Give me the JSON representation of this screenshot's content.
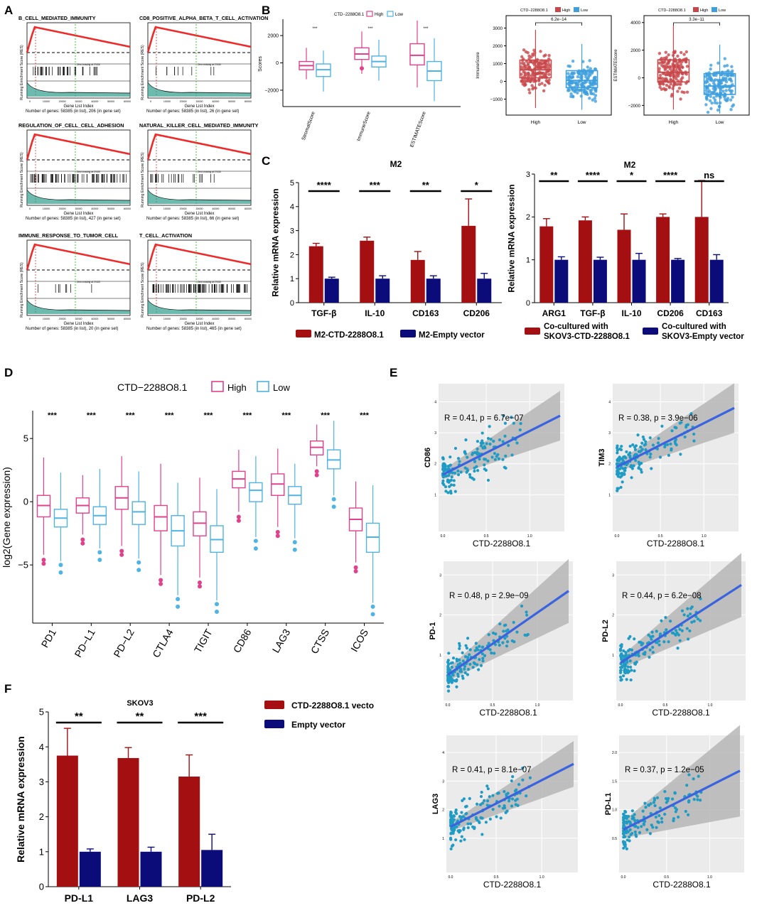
{
  "colors": {
    "gsea_red": "#ee2b2b",
    "gsea_green": "#2fcf2f",
    "gsea_teal": "#2f9c8c",
    "high_pink": "#e0418c",
    "low_blue": "#4fb3e3",
    "box_red": "#c8474a",
    "box_blue": "#3f9fdd",
    "bar_red": "#a40f12",
    "bar_navy": "#0b0c7a",
    "scatter_pt": "#1f9bc4",
    "fit_line": "#3a63e0",
    "panel_bg": "#ebebeb"
  },
  "panel_labels": [
    "A",
    "B",
    "C",
    "D",
    "E",
    "F"
  ],
  "panel_A": {
    "xlabel": "Gene List Index",
    "ylabel": "Running Enrichment Score (RES)",
    "zero_cross": "Zero crossing at 27435",
    "plots": [
      {
        "title": "B_CELL_MEDIATED_IMMUNITY",
        "genes": "Number of genes: 58385 (in list), 206 (in gene set)"
      },
      {
        "title": "CD8_POSITIVE_ALPHA_BETA_T_CELL_ACTIVATION",
        "genes": "Number of genes: 58385 (in list), 26 (in gene set)"
      },
      {
        "title": "REGULATION_OF_CELL_CELL_ADHESION",
        "genes": "Number of genes: 58385 (in list), 427 (in gene set)"
      },
      {
        "title": "NATURAL_KILLER_CELL_MEDIATED_IMMUNITY",
        "genes": "Number of genes: 58385 (in list), 66 (in gene set)"
      },
      {
        "title": "IMMUNE_RESPONSE_TO_TUMOR_CELL",
        "genes": "Number of genes: 58385 (in list), 20 (in gene set)"
      },
      {
        "title": "T_CELL_ACTIVATION",
        "genes": "Number of genes: 58385 (in list), 465 (in gene set)"
      }
    ],
    "xticks": [
      "0",
      "10000",
      "20000",
      "30000",
      "40000",
      "50000",
      "60000"
    ]
  },
  "chart_data": [
    {
      "id": "B1",
      "type": "box",
      "legend_title": "CTD−2288O8.1",
      "legend": [
        "High",
        "Low"
      ],
      "ylabel": "Scores",
      "ylim": [
        -3200,
        3200
      ],
      "yticks": [
        2000,
        0,
        -2000
      ],
      "categories": [
        "StromalScore",
        "ImmuneScore",
        "ESTIMATEScore"
      ],
      "significance": [
        "***",
        "***",
        "***"
      ],
      "series": [
        {
          "name": "High",
          "boxes": [
            {
              "q1": -500,
              "med": -200,
              "q3": 100,
              "lo": -1200,
              "hi": 1100
            },
            {
              "q1": 250,
              "med": 650,
              "q3": 1100,
              "lo": -800,
              "hi": 2300
            },
            {
              "q1": -150,
              "med": 550,
              "q3": 1400,
              "lo": -1800,
              "hi": 3100
            }
          ]
        },
        {
          "name": "Low",
          "boxes": [
            {
              "q1": -1000,
              "med": -500,
              "q3": -80,
              "lo": -2100,
              "hi": 900
            },
            {
              "q1": -300,
              "med": 100,
              "q3": 500,
              "lo": -1300,
              "hi": 1700
            },
            {
              "q1": -1300,
              "med": -600,
              "q3": 100,
              "lo": -2800,
              "hi": 1800
            }
          ]
        }
      ]
    },
    {
      "id": "B2",
      "type": "box_jitter",
      "legend_title": "CTD−2288O8.1",
      "legend": [
        "High",
        "Low"
      ],
      "ylabel": "ImmuneScore",
      "ylim": [
        -1900,
        3700
      ],
      "yticks": [
        3000,
        2000,
        1000,
        0,
        -1000
      ],
      "categories": [
        "High",
        "Low"
      ],
      "pvalue": "6.2e−14",
      "boxes": [
        {
          "q1": 200,
          "med": 650,
          "q3": 1200,
          "lo": -1500,
          "hi": 2900
        },
        {
          "q1": -350,
          "med": 50,
          "q3": 600,
          "lo": -1600,
          "hi": 2100
        }
      ]
    },
    {
      "id": "B3",
      "type": "box_jitter",
      "legend_title": "CTD−2288O8.1",
      "legend": [
        "High",
        "Low"
      ],
      "ylabel": "ESTIMATEScore",
      "ylim": [
        -2700,
        4500
      ],
      "yticks": [
        4000,
        2000,
        0,
        -2000
      ],
      "categories": [
        "High",
        "Low"
      ],
      "pvalue": "3.3e−11",
      "boxes": [
        {
          "q1": -300,
          "med": 400,
          "q3": 1300,
          "lo": -2300,
          "hi": 3800
        },
        {
          "q1": -1200,
          "med": -600,
          "q3": 300,
          "lo": -2600,
          "hi": 2400
        }
      ]
    },
    {
      "id": "C1",
      "type": "bar",
      "title": "M2",
      "ylabel": "Relative mRNA expression",
      "ylim": [
        0,
        5
      ],
      "yticks": [
        0,
        1,
        2,
        3,
        4,
        5
      ],
      "categories": [
        "TGF-β",
        "IL-10",
        "CD163",
        "CD206"
      ],
      "significance": [
        "****",
        "***",
        "**",
        "*"
      ],
      "series": [
        {
          "name": "M2-CTD-2288O8.1",
          "values": [
            2.35,
            2.58,
            1.78,
            3.2
          ],
          "errors": [
            0.12,
            0.15,
            0.35,
            1.12
          ]
        },
        {
          "name": "M2-Empty vector",
          "values": [
            1.0,
            1.0,
            1.0,
            1.0
          ],
          "errors": [
            0.06,
            0.12,
            0.12,
            0.22
          ]
        }
      ]
    },
    {
      "id": "C2",
      "type": "bar",
      "title": "M2",
      "ylabel": "Relative mRNA expression",
      "ylim": [
        0,
        3
      ],
      "yticks": [
        0,
        1,
        2,
        3
      ],
      "categories": [
        "ARG1",
        "TGF-β",
        "IL-10",
        "CD206",
        "CD163"
      ],
      "significance": [
        "**",
        "****",
        "*",
        "****",
        "ns"
      ],
      "series": [
        {
          "name": "Co-cultured with SKOV3-CTD-2288O8.1",
          "values": [
            1.78,
            1.92,
            1.7,
            2.0,
            2.0
          ],
          "errors": [
            0.18,
            0.08,
            0.37,
            0.07,
            0.85
          ]
        },
        {
          "name": "Co-cultured with SKOV3-Empty vector",
          "values": [
            1.0,
            1.0,
            1.0,
            1.0,
            1.0
          ],
          "errors": [
            0.07,
            0.06,
            0.15,
            0.03,
            0.12
          ]
        }
      ],
      "legend_lines": [
        [
          "Co-cultured with",
          "SKOV3-CTD-2288O8.1"
        ],
        [
          "Co-cultured with",
          "SKOV3-Empty vector"
        ]
      ]
    },
    {
      "id": "D",
      "type": "box",
      "legend_title": "CTD−2288O8.1",
      "legend": [
        "High",
        "Low"
      ],
      "ylabel": "log2(Gene expression)",
      "ylim": [
        -9.6,
        7.2
      ],
      "yticks": [
        5,
        0,
        -5
      ],
      "categories": [
        "PD1",
        "PD−L1",
        "PD−L2",
        "CTLA4",
        "TIGIT",
        "CD86",
        "LAG3",
        "CTSS",
        "ICOS"
      ],
      "significance": [
        "***",
        "***",
        "***",
        "***",
        "***",
        "***",
        "***",
        "***",
        "***"
      ],
      "series": [
        {
          "name": "High",
          "boxes": [
            {
              "q1": -1.2,
              "med": -0.3,
              "q3": 0.5,
              "lo": -4.2,
              "hi": 3.5
            },
            {
              "q1": -0.9,
              "med": -0.3,
              "q3": 0.3,
              "lo": -2.6,
              "hi": 2.1
            },
            {
              "q1": -0.6,
              "med": 0.3,
              "q3": 1.2,
              "lo": -3.5,
              "hi": 3.6
            },
            {
              "q1": -2.3,
              "med": -1.2,
              "q3": -0.3,
              "lo": -5.8,
              "hi": 3.0
            },
            {
              "q1": -2.7,
              "med": -1.7,
              "q3": -0.8,
              "lo": -6.0,
              "hi": 1.9
            },
            {
              "q1": 1.1,
              "med": 1.8,
              "q3": 2.4,
              "lo": -0.8,
              "hi": 4.1
            },
            {
              "q1": 0.5,
              "med": 1.4,
              "q3": 2.2,
              "lo": -2.0,
              "hi": 4.2
            },
            {
              "q1": 3.7,
              "med": 4.3,
              "q3": 4.8,
              "lo": 2.8,
              "hi": 6.1
            },
            {
              "q1": -2.3,
              "med": -1.4,
              "q3": -0.5,
              "lo": -4.8,
              "hi": 1.6
            }
          ]
        },
        {
          "name": "Low",
          "boxes": [
            {
              "q1": -2.0,
              "med": -1.3,
              "q3": -0.6,
              "lo": -4.7,
              "hi": 2.3
            },
            {
              "q1": -1.8,
              "med": -1.1,
              "q3": -0.4,
              "lo": -3.7,
              "hi": 2.6
            },
            {
              "q1": -1.8,
              "med": -0.8,
              "q3": 0.0,
              "lo": -4.5,
              "hi": 2.4
            },
            {
              "q1": -3.5,
              "med": -2.3,
              "q3": -1.1,
              "lo": -7.4,
              "hi": 1.5
            },
            {
              "q1": -4.0,
              "med": -3.0,
              "q3": -1.9,
              "lo": -7.8,
              "hi": 1.0
            },
            {
              "q1": 0.0,
              "med": 0.9,
              "q3": 1.5,
              "lo": -2.8,
              "hi": 3.6
            },
            {
              "q1": -0.2,
              "med": 0.5,
              "q3": 1.2,
              "lo": -2.9,
              "hi": 3.0
            },
            {
              "q1": 2.6,
              "med": 3.3,
              "q3": 4.1,
              "lo": 0.5,
              "hi": 6.4
            },
            {
              "q1": -4.0,
              "med": -2.8,
              "q3": -1.7,
              "lo": -8.0,
              "hi": 1.3
            }
          ]
        }
      ]
    },
    {
      "id": "E",
      "type": "scatter",
      "xlabel": "CTD-2288O8.1",
      "plots": [
        {
          "gene": "CD86",
          "stat": "R = 0.41, p = 6.7e−07",
          "xticks": [
            "0.0",
            "0.5",
            "1.0"
          ],
          "yticks": [
            "1",
            "2",
            "3",
            "4"
          ],
          "fit": [
            [
              0,
              1.65
            ],
            [
              1.35,
              3.55
            ]
          ],
          "ylim": [
            0,
            4.4
          ]
        },
        {
          "gene": "TIM3",
          "stat": "R = 0.38, p = 3.9e−06",
          "xticks": [
            "0.0",
            "0.5",
            "1.0"
          ],
          "yticks": [
            "1",
            "2",
            "3",
            "4"
          ],
          "fit": [
            [
              0,
              1.9
            ],
            [
              1.35,
              3.8
            ]
          ],
          "ylim": [
            0,
            4.4
          ]
        },
        {
          "gene": "PD-1",
          "stat": "R = 0.48, p = 2.9e−09",
          "xticks": [
            "0.0",
            "0.5",
            "1.0"
          ],
          "yticks": [
            "1",
            "2",
            "3"
          ],
          "fit": [
            [
              0,
              0.5
            ],
            [
              1.35,
              2.6
            ]
          ],
          "ylim": [
            0,
            3.2
          ]
        },
        {
          "gene": "PD-L2",
          "stat": "R = 0.44, p = 6.2e−08",
          "xticks": [
            "0.0",
            "0.5",
            "1.0"
          ],
          "yticks": [
            "1",
            "2",
            "3"
          ],
          "fit": [
            [
              0,
              0.8
            ],
            [
              1.35,
              2.75
            ]
          ],
          "ylim": [
            0,
            3.2
          ]
        },
        {
          "gene": "LAG3",
          "stat": "R = 0.41, p = 8.1e−07",
          "xticks": [
            "0.0",
            "0.5",
            "1.0"
          ],
          "yticks": [
            "1",
            "2",
            "3",
            "4"
          ],
          "fit": [
            [
              0,
              1.4
            ],
            [
              1.35,
              3.6
            ]
          ],
          "ylim": [
            0,
            4.4
          ]
        },
        {
          "gene": "PD-L1",
          "stat": "R = 0.37, p = 1.2e−05",
          "xticks": [
            "0.0",
            "0.5",
            "1.0"
          ],
          "yticks": [
            "0.5",
            "1.0",
            "1.5",
            "2.0"
          ],
          "fit": [
            [
              0,
              0.65
            ],
            [
              1.35,
              1.68
            ]
          ],
          "ylim": [
            0,
            2.2
          ]
        }
      ]
    },
    {
      "id": "F",
      "type": "bar",
      "title": "SKOV3",
      "ylabel": "Relative mRNA expression",
      "ylim": [
        0,
        5
      ],
      "yticks": [
        0,
        1,
        2,
        3,
        4,
        5
      ],
      "categories": [
        "PD-L1",
        "LAG3",
        "PD-L2"
      ],
      "significance": [
        "**",
        "**",
        "***"
      ],
      "series": [
        {
          "name": "CTD-2288O8.1 vecto",
          "values": [
            3.75,
            3.68,
            3.15
          ],
          "errors": [
            0.78,
            0.3,
            0.62
          ]
        },
        {
          "name": "Empty vector",
          "values": [
            1.0,
            1.0,
            1.05
          ],
          "errors": [
            0.08,
            0.13,
            0.45
          ]
        }
      ]
    }
  ]
}
